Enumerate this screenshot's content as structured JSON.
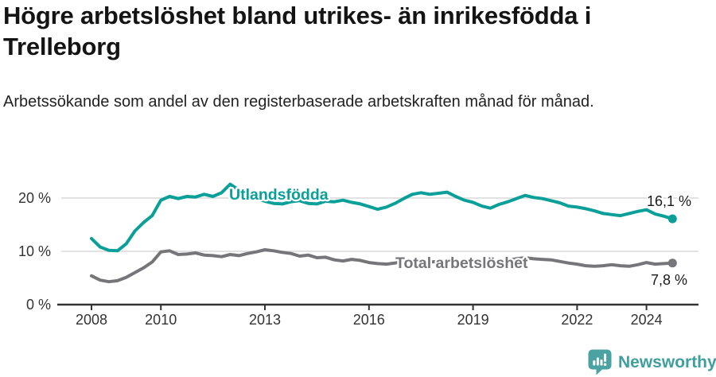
{
  "header": {
    "title": "Högre arbetslöshet bland utrikes- än inrikesfödda i Trelleborg",
    "subtitle": "Arbetssökande som andel av den registerbaserade arbetskraften månad för månad."
  },
  "chart_data": {
    "type": "line",
    "title": "Högre arbetslöshet bland utrikes- än inrikesfödda i Trelleborg",
    "subtitle": "Arbetssökande som andel av den registerbaserade arbetskraften månad för månad.",
    "unit": "%",
    "xlim": [
      2007.1,
      2025.5
    ],
    "ylim": [
      0,
      23.5
    ],
    "grid": "horizontal",
    "legend": "inline-labels",
    "axis_color": "#333333",
    "grid_color": "#e2e2e2",
    "text_color": "#1a1a1a",
    "x_ticks": [
      2008,
      2010,
      2013,
      2016,
      2019,
      2022,
      2024
    ],
    "y_ticks": [
      {
        "value": 0,
        "label": "0 %"
      },
      {
        "value": 10,
        "label": "10 %"
      },
      {
        "value": 20,
        "label": "20 %"
      }
    ],
    "x": [
      2008.0,
      2008.25,
      2008.5,
      2008.75,
      2009.0,
      2009.25,
      2009.5,
      2009.75,
      2010.0,
      2010.25,
      2010.5,
      2010.75,
      2011.0,
      2011.25,
      2011.5,
      2011.75,
      2012.0,
      2012.25,
      2012.5,
      2012.75,
      2013.0,
      2013.25,
      2013.5,
      2013.75,
      2014.0,
      2014.25,
      2014.5,
      2014.75,
      2015.0,
      2015.25,
      2015.5,
      2015.75,
      2016.0,
      2016.25,
      2016.5,
      2016.75,
      2017.0,
      2017.25,
      2017.5,
      2017.75,
      2018.0,
      2018.25,
      2018.5,
      2018.75,
      2019.0,
      2019.25,
      2019.5,
      2019.75,
      2020.0,
      2020.25,
      2020.5,
      2020.75,
      2021.0,
      2021.25,
      2021.5,
      2021.75,
      2022.0,
      2022.25,
      2022.5,
      2022.75,
      2023.0,
      2023.25,
      2023.5,
      2023.75,
      2024.0,
      2024.25,
      2024.5,
      2024.75
    ],
    "series": [
      {
        "name": "Utlandsfödda",
        "color": "#0a9f98",
        "end_label": "16,1 %",
        "last_value": 16.1,
        "values": [
          12.4,
          10.8,
          10.2,
          10.1,
          11.4,
          13.8,
          15.4,
          16.7,
          19.6,
          20.3,
          19.9,
          20.3,
          20.2,
          20.7,
          20.3,
          21.0,
          22.6,
          21.5,
          20.6,
          19.9,
          19.4,
          19.0,
          18.9,
          19.3,
          19.5,
          19.0,
          18.9,
          19.4,
          19.3,
          19.6,
          19.2,
          18.9,
          18.4,
          17.9,
          18.3,
          19.0,
          19.9,
          20.7,
          21.0,
          20.7,
          20.9,
          21.1,
          20.3,
          19.6,
          19.2,
          18.5,
          18.1,
          18.8,
          19.3,
          19.9,
          20.5,
          20.1,
          19.9,
          19.5,
          19.1,
          18.5,
          18.3,
          18.0,
          17.6,
          17.1,
          16.9,
          16.7,
          17.1,
          17.5,
          17.8,
          17.0,
          16.6,
          16.1
        ]
      },
      {
        "name": "Total arbetslöshet",
        "color": "#76767a",
        "end_label": "7,8 %",
        "last_value": 7.8,
        "values": [
          5.4,
          4.6,
          4.3,
          4.5,
          5.1,
          6.0,
          6.9,
          8.0,
          9.9,
          10.1,
          9.4,
          9.5,
          9.7,
          9.3,
          9.2,
          9.0,
          9.4,
          9.2,
          9.6,
          9.9,
          10.3,
          10.1,
          9.8,
          9.6,
          9.1,
          9.3,
          8.8,
          8.9,
          8.4,
          8.2,
          8.5,
          8.3,
          7.9,
          7.7,
          7.6,
          7.8,
          8.1,
          8.3,
          8.2,
          8.0,
          8.1,
          8.3,
          8.1,
          8.0,
          8.2,
          8.0,
          7.9,
          8.1,
          8.3,
          8.6,
          8.8,
          8.6,
          8.5,
          8.4,
          8.1,
          7.8,
          7.6,
          7.3,
          7.2,
          7.3,
          7.5,
          7.3,
          7.2,
          7.5,
          7.9,
          7.6,
          7.7,
          7.8
        ]
      }
    ]
  },
  "footer": {
    "brand": "Newsworthy",
    "brand_color": "#3f9e9e"
  }
}
